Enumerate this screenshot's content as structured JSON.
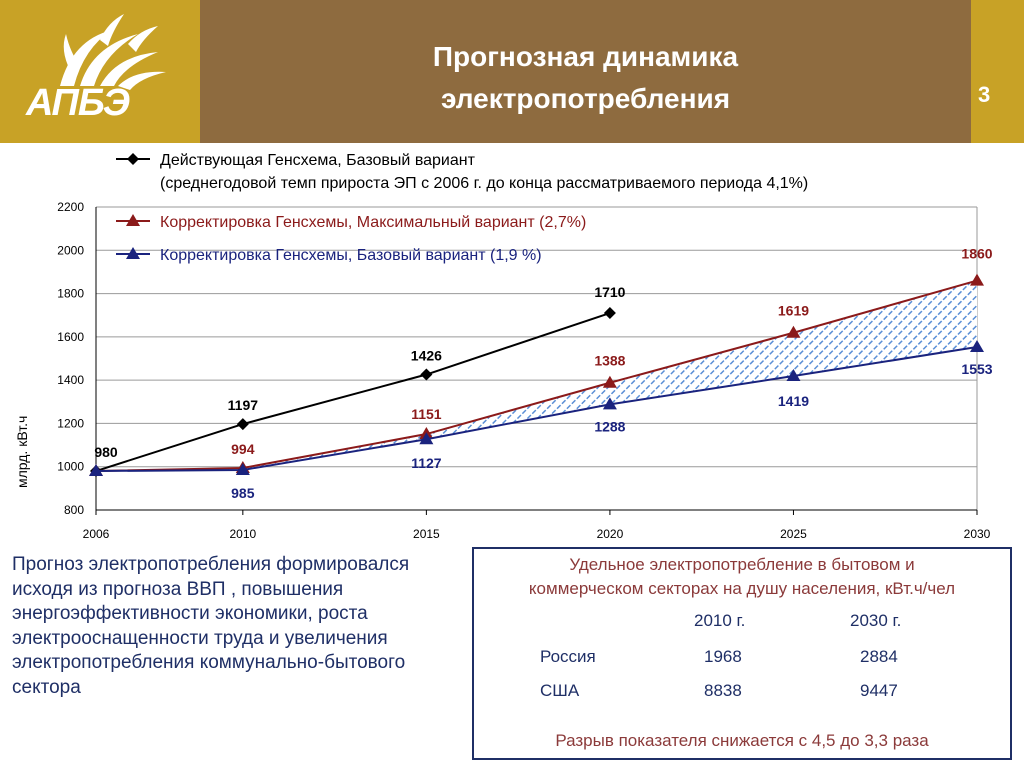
{
  "header": {
    "title_line1": "Прогнозная динамика",
    "title_line2": "электропотребления",
    "page_number": "3",
    "logo_text": "АПБЭ"
  },
  "colors": {
    "header_gold": "#C8A226",
    "header_brown": "#8E6B3F",
    "series_black": "#000000",
    "series_red": "#8B1A1A",
    "series_blue": "#1A237E",
    "hatch_blue": "#5B8FD6",
    "text_navy": "#1F2F66"
  },
  "chart_data": {
    "type": "line",
    "ylabel": "млрд. кВт.ч",
    "ylim": [
      800,
      2200
    ],
    "yticks": [
      800,
      1000,
      1200,
      1400,
      1600,
      1800,
      2000,
      2200
    ],
    "xticks": [
      "2006",
      "2010",
      "2015",
      "2020",
      "2025",
      "2030"
    ],
    "grid": "horizontal",
    "legend_placement": "top-left",
    "series": [
      {
        "name": "Действующая Генсхема, Базовый вариант",
        "name_line2": "(среднегодовой темп прироста ЭП с 2006 г. до конца рассматриваемого периода 4,1%)",
        "marker": "diamond",
        "color": "#000000",
        "x": [
          2006,
          2010,
          2015,
          2020
        ],
        "y": [
          980,
          1197,
          1426,
          1710
        ],
        "labels": [
          "980",
          "1197",
          "1426",
          "1710"
        ]
      },
      {
        "name": "Корректировка Генсхемы, Максимальный вариант (2,7%)",
        "marker": "triangle",
        "color": "#8B1A1A",
        "x": [
          2006,
          2010,
          2015,
          2020,
          2025,
          2030
        ],
        "y": [
          980,
          994,
          1151,
          1388,
          1619,
          1860
        ],
        "labels": [
          "",
          "994",
          "1151",
          "1388",
          "1619",
          "1860"
        ]
      },
      {
        "name": "Корректировка Генсхемы, Базовый вариант (1,9 %)",
        "marker": "triangle",
        "color": "#1A237E",
        "x": [
          2006,
          2010,
          2015,
          2020,
          2025,
          2030
        ],
        "y": [
          980,
          985,
          1127,
          1288,
          1419,
          1553
        ],
        "labels": [
          "",
          "985",
          "1127",
          "1288",
          "1419",
          "1553"
        ]
      }
    ]
  },
  "note": {
    "text": "Прогноз электропотребления формировался исходя из прогноза ВВП , повышения энергоэффективности экономики, роста электрооснащенности труда и увеличения электропотребления коммунально-бытового сектора"
  },
  "table": {
    "title_line1": "Удельное электропотребление в бытовом и",
    "title_line2": "коммерческом секторах на душу населения, кВт.ч/чел",
    "col1": "2010 г.",
    "col2": "2030 г.",
    "rows": [
      {
        "label": "Россия",
        "v1": "1968",
        "v2": "2884"
      },
      {
        "label": "США",
        "v1": "8838",
        "v2": "9447"
      }
    ],
    "footer": "Разрыв показателя снижается с 4,5 до 3,3 раза"
  }
}
